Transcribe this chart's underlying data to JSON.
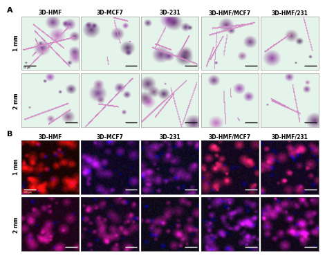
{
  "panel_A_label": "A",
  "panel_B_label": "B",
  "col_labels": [
    "3D-HMF",
    "3D-MCF7",
    "3D-231",
    "3D-HMF/MCF7",
    "3D-HMF/231"
  ],
  "row_labels_A": [
    "1 mm",
    "2 mm"
  ],
  "row_labels_B": [
    "1 mm",
    "2 mm"
  ],
  "bg_color": "#ffffff",
  "col_label_fontsize": 5.5,
  "row_label_fontsize": 5.5,
  "panel_label_fontsize": 8,
  "panel_A_bg": [
    0.9,
    0.96,
    0.92
  ],
  "panel_B_bases": [
    [
      [
        0.1,
        0.01,
        0.01
      ],
      [
        0.06,
        0.03,
        0.14
      ],
      [
        0.05,
        0.04,
        0.13
      ],
      [
        0.08,
        0.03,
        0.12
      ],
      [
        0.08,
        0.03,
        0.13
      ]
    ],
    [
      [
        0.12,
        0.01,
        0.1
      ],
      [
        0.08,
        0.03,
        0.12
      ],
      [
        0.06,
        0.04,
        0.1
      ],
      [
        0.06,
        0.04,
        0.1
      ],
      [
        0.07,
        0.03,
        0.1
      ]
    ]
  ],
  "panel_B_spot_colors": [
    [
      [
        0.8,
        0.05,
        0.05
      ],
      [
        0.55,
        0.05,
        0.65
      ],
      [
        0.55,
        0.05,
        0.55
      ],
      [
        0.85,
        0.1,
        0.3
      ],
      [
        0.8,
        0.08,
        0.4
      ]
    ],
    [
      [
        0.7,
        0.05,
        0.5
      ],
      [
        0.65,
        0.05,
        0.45
      ],
      [
        0.6,
        0.05,
        0.45
      ],
      [
        0.55,
        0.05,
        0.65
      ],
      [
        0.65,
        0.05,
        0.55
      ]
    ]
  ]
}
